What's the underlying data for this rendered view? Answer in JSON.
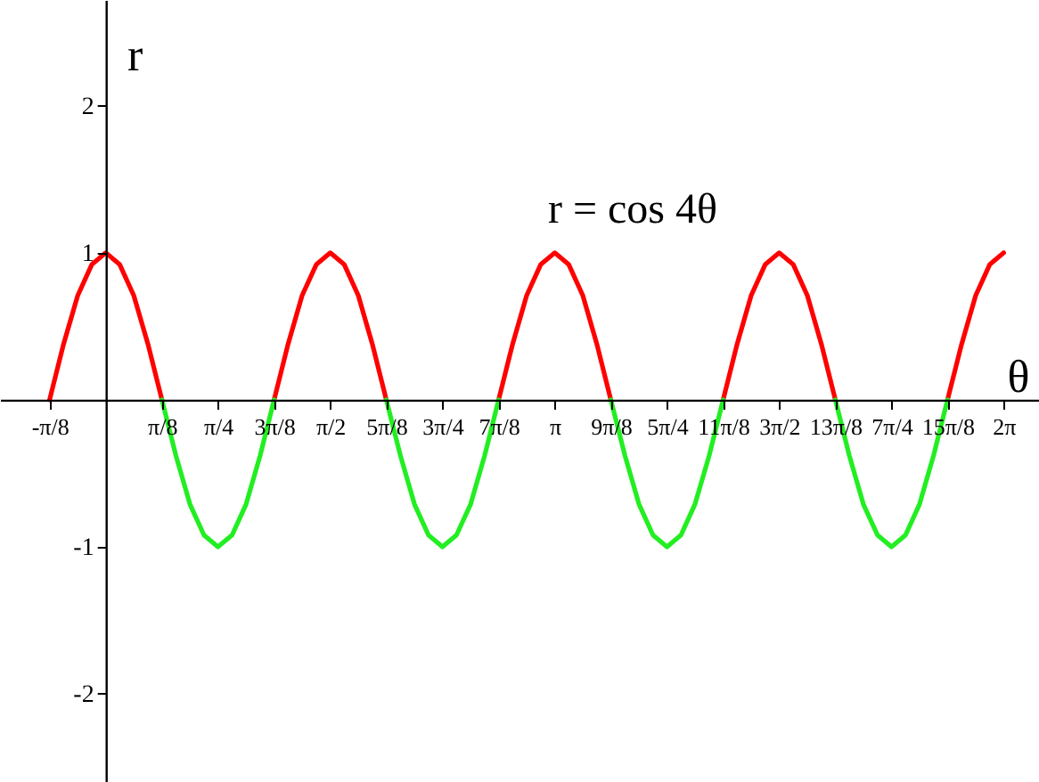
{
  "chart_data": {
    "type": "line",
    "title": "r = cos 4θ",
    "xlabel": "θ",
    "ylabel": "r",
    "x": [
      -0.393,
      -0.295,
      -0.196,
      -0.098,
      0,
      0.098,
      0.196,
      0.295,
      0.393,
      0.491,
      0.589,
      0.687,
      0.785,
      0.884,
      0.982,
      1.08,
      1.178,
      1.276,
      1.374,
      1.473,
      1.571,
      1.669,
      1.767,
      1.865,
      1.963,
      2.062,
      2.16,
      2.258,
      2.356,
      2.454,
      2.553,
      2.651,
      2.749,
      2.847,
      2.945,
      3.043,
      3.142,
      3.24,
      3.338,
      3.436,
      3.534,
      3.633,
      3.731,
      3.829,
      3.927,
      4.025,
      4.123,
      4.222,
      4.32,
      4.418,
      4.516,
      4.614,
      4.712,
      4.811,
      4.909,
      5.007,
      5.105,
      5.203,
      5.301,
      5.4,
      5.498,
      5.596,
      5.694,
      5.792,
      5.89,
      5.989,
      6.087,
      6.185,
      6.283
    ],
    "series": [
      {
        "color": "#ff0000",
        "values": [
          0,
          0.38,
          0.71,
          0.92,
          1,
          0.92,
          0.71,
          0.38,
          0,
          null,
          null,
          null,
          null,
          null,
          null,
          null,
          0,
          0.38,
          0.71,
          0.92,
          1,
          0.92,
          0.71,
          0.38,
          0,
          null,
          null,
          null,
          null,
          null,
          null,
          null,
          0,
          0.38,
          0.71,
          0.92,
          1,
          0.92,
          0.71,
          0.38,
          0,
          null,
          null,
          null,
          null,
          null,
          null,
          null,
          0,
          0.38,
          0.71,
          0.92,
          1,
          0.92,
          0.71,
          0.38,
          0,
          null,
          null,
          null,
          null,
          null,
          null,
          null,
          0,
          0.38,
          0.71,
          0.92,
          1
        ]
      },
      {
        "color": "#22ee22",
        "values": [
          null,
          null,
          null,
          null,
          null,
          null,
          null,
          null,
          0,
          -0.38,
          -0.71,
          -0.92,
          -1,
          -0.92,
          -0.71,
          -0.38,
          0,
          null,
          null,
          null,
          null,
          null,
          null,
          null,
          0,
          -0.38,
          -0.71,
          -0.92,
          -1,
          -0.92,
          -0.71,
          -0.38,
          0,
          null,
          null,
          null,
          null,
          null,
          null,
          null,
          0,
          -0.38,
          -0.71,
          -0.92,
          -1,
          -0.92,
          -0.71,
          -0.38,
          0,
          null,
          null,
          null,
          null,
          null,
          null,
          null,
          0,
          -0.38,
          -0.71,
          -0.92,
          -1,
          -0.92,
          -0.71,
          -0.38,
          0,
          null,
          null,
          null,
          null
        ]
      }
    ],
    "xlim": [
      -0.74,
      6.53
    ],
    "ylim": [
      -2.6,
      2.72
    ],
    "xticks": [
      {
        "value": -0.393,
        "label": "-π/8"
      },
      {
        "value": 0.393,
        "label": "π/8"
      },
      {
        "value": 0.785,
        "label": "π/4"
      },
      {
        "value": 1.178,
        "label": "3π/8"
      },
      {
        "value": 1.571,
        "label": "π/2"
      },
      {
        "value": 1.963,
        "label": "5π/8"
      },
      {
        "value": 2.356,
        "label": "3π/4"
      },
      {
        "value": 2.749,
        "label": "7π/8"
      },
      {
        "value": 3.142,
        "label": "π"
      },
      {
        "value": 3.534,
        "label": "9π/8"
      },
      {
        "value": 3.927,
        "label": "5π/4"
      },
      {
        "value": 4.32,
        "label": "11π/8"
      },
      {
        "value": 4.712,
        "label": "3π/2"
      },
      {
        "value": 5.105,
        "label": "13π/8"
      },
      {
        "value": 5.498,
        "label": "7π/4"
      },
      {
        "value": 5.89,
        "label": "15π/8"
      },
      {
        "value": 6.283,
        "label": "2π"
      }
    ],
    "yticks": [
      -2,
      -1,
      1,
      2
    ],
    "grid": false,
    "marker": "none",
    "line_style": "solid"
  }
}
